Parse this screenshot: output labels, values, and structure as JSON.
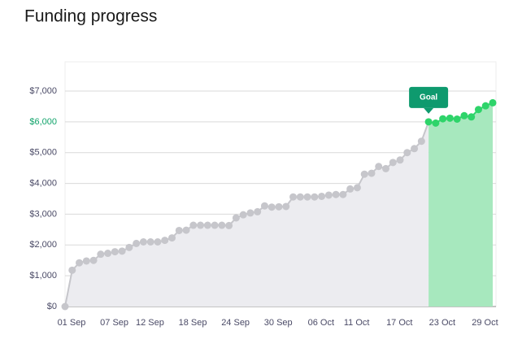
{
  "chart_data": {
    "type": "line",
    "title": "Funding progress",
    "categories": [
      "01 Sep",
      null,
      null,
      null,
      null,
      null,
      "07 Sep",
      null,
      null,
      null,
      null,
      "12 Sep",
      null,
      null,
      null,
      null,
      null,
      "18 Sep",
      null,
      null,
      null,
      null,
      null,
      "24 Sep",
      null,
      null,
      null,
      null,
      null,
      "30 Sep",
      null,
      null,
      null,
      null,
      null,
      "06 Oct",
      null,
      null,
      null,
      null,
      "11 Oct",
      null,
      null,
      null,
      null,
      null,
      "17 Oct",
      null,
      null,
      null,
      null,
      null,
      "23 Oct",
      null,
      null,
      null,
      null,
      null,
      "29 Oct",
      null,
      null
    ],
    "values": [
      0,
      1180,
      1420,
      1480,
      1500,
      1700,
      1730,
      1780,
      1800,
      1920,
      2050,
      2100,
      2100,
      2100,
      2150,
      2230,
      2470,
      2480,
      2640,
      2640,
      2640,
      2640,
      2640,
      2630,
      2880,
      2980,
      3040,
      3080,
      3270,
      3230,
      3240,
      3250,
      3560,
      3560,
      3560,
      3560,
      3580,
      3620,
      3640,
      3640,
      3820,
      3860,
      4300,
      4330,
      4550,
      4480,
      4680,
      4760,
      5000,
      5130,
      5370,
      6000,
      5960,
      6100,
      6120,
      6090,
      6200,
      6160,
      6400,
      6520,
      6620
    ],
    "color": "#c6c6cb",
    "goal_color": "#2ed46a",
    "goal": {
      "label": "Goal",
      "value": 6000
    },
    "ylim": [
      0,
      7000
    ],
    "yticks": [
      {
        "value": 0,
        "label": "$0"
      },
      {
        "value": 1000,
        "label": "$1,000"
      },
      {
        "value": 2000,
        "label": "$2,000"
      },
      {
        "value": 3000,
        "label": "$3,000"
      },
      {
        "value": 4000,
        "label": "$4,000"
      },
      {
        "value": 5000,
        "label": "$5,000"
      },
      {
        "value": 6000,
        "label": "$6,000"
      },
      {
        "value": 7000,
        "label": "$7,000"
      }
    ],
    "grid": true
  }
}
